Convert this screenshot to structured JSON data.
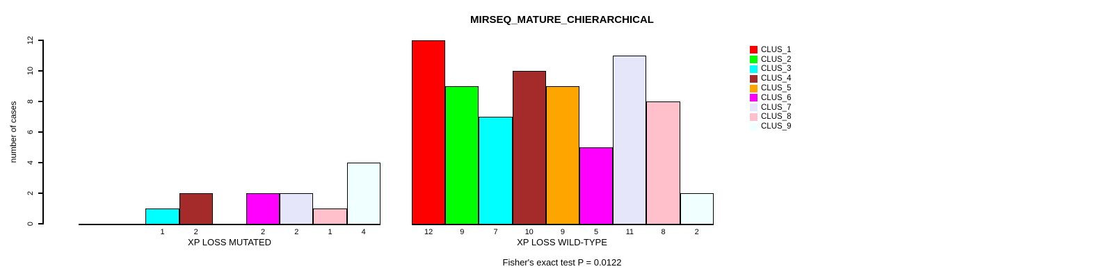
{
  "title": "MIRSEQ_MATURE_CHIERARCHICAL",
  "chart_data": {
    "type": "bar",
    "title": "MIRSEQ_MATURE_CHIERARCHICAL",
    "ylabel": "number of cases",
    "xlabel": "",
    "ylim": [
      0,
      12
    ],
    "yticks": [
      0,
      2,
      4,
      6,
      8,
      10,
      12
    ],
    "grid": false,
    "legend_position": "right",
    "clusters": [
      "CLUS_1",
      "CLUS_2",
      "CLUS_3",
      "CLUS_4",
      "CLUS_5",
      "CLUS_6",
      "CLUS_7",
      "CLUS_8",
      "CLUS_9"
    ],
    "colors": [
      "#FF0000",
      "#00FF00",
      "#00FFFF",
      "#A52A2A",
      "#FFA500",
      "#FF00FF",
      "#E6E6FA",
      "#FFC0CB",
      "#F0FFFF"
    ],
    "bar_border_color": "#000000",
    "groups": [
      {
        "label": "XP LOSS MUTATED",
        "values": [
          0,
          0,
          1,
          2,
          0,
          2,
          2,
          1,
          4
        ]
      },
      {
        "label": "XP LOSS WILD-TYPE",
        "values": [
          12,
          9,
          7,
          10,
          9,
          5,
          11,
          8,
          2
        ]
      }
    ],
    "bar_value_labels": {
      "XP LOSS MUTATED": [
        null,
        null,
        "1",
        "2",
        null,
        "2",
        "2",
        "1",
        "4"
      ],
      "XP LOSS WILD-TYPE": [
        "12",
        "9",
        "7",
        "10",
        "9",
        "5",
        "11",
        "8",
        "2"
      ]
    },
    "annotation": "Fisher's exact test P = 0.0122"
  }
}
